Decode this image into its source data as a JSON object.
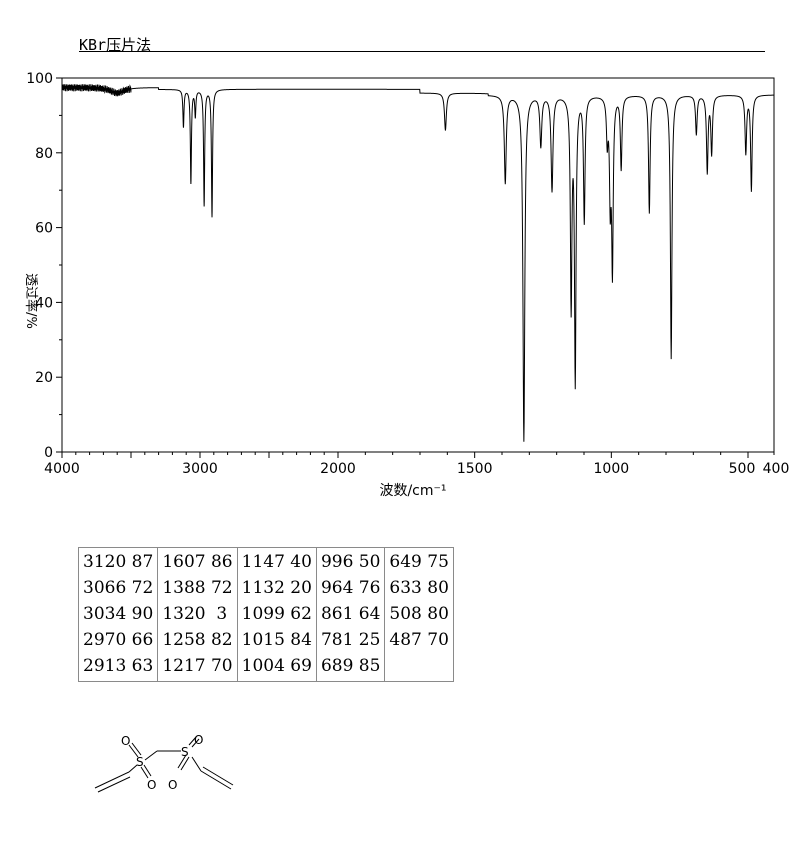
{
  "method_label": "KBr压片法",
  "chart_data": {
    "type": "line",
    "xlabel": "波数/cm⁻¹",
    "ylabel": "透过率/%",
    "xlim": [
      4000,
      400
    ],
    "ylim": [
      0,
      100
    ],
    "x_ticks": [
      {
        "value": 4000,
        "label": "4000"
      },
      {
        "value": 3000,
        "label": "3000"
      },
      {
        "value": 2000,
        "label": "2000"
      },
      {
        "value": 1500,
        "label": "1500"
      },
      {
        "value": 1000,
        "label": "1000"
      },
      {
        "value": 500,
        "label": "500"
      },
      {
        "value": 400,
        "label": "400"
      }
    ],
    "y_ticks": [
      0,
      20,
      40,
      60,
      80,
      100
    ],
    "grid": false,
    "series": [
      {
        "peaks": [
          [
            3120,
            87
          ],
          [
            3066,
            72
          ],
          [
            3034,
            90
          ],
          [
            2970,
            66
          ],
          [
            2913,
            63
          ],
          [
            1607,
            86
          ],
          [
            1388,
            72
          ],
          [
            1320,
            3
          ],
          [
            1258,
            82
          ],
          [
            1217,
            70
          ],
          [
            1147,
            40
          ],
          [
            1132,
            20
          ],
          [
            1099,
            62
          ],
          [
            1015,
            84
          ],
          [
            1004,
            69
          ],
          [
            996,
            50
          ],
          [
            964,
            76
          ],
          [
            861,
            64
          ],
          [
            781,
            25
          ],
          [
            689,
            85
          ],
          [
            649,
            75
          ],
          [
            633,
            80
          ],
          [
            508,
            80
          ],
          [
            487,
            70
          ]
        ]
      }
    ]
  },
  "peak_table": [
    [
      "3120 87",
      "3066 72",
      "3034 90",
      "2970 66",
      "2913 63"
    ],
    [
      "1607 86",
      "1388 72",
      "1320  3",
      "1258 82",
      "1217 70"
    ],
    [
      "1147 40",
      "1132 20",
      "1099 62",
      "1015 84",
      "1004 69"
    ],
    [
      "996 50",
      "964 76",
      "861 64",
      "781 25",
      "689 85"
    ],
    [
      "649 75",
      "633 80",
      "508 80",
      "487 70",
      ""
    ]
  ],
  "structure": {
    "atoms": {
      "o1": "O",
      "o2": "O",
      "o3": "O",
      "o4": "O",
      "s1": "S",
      "s2": "S"
    }
  }
}
